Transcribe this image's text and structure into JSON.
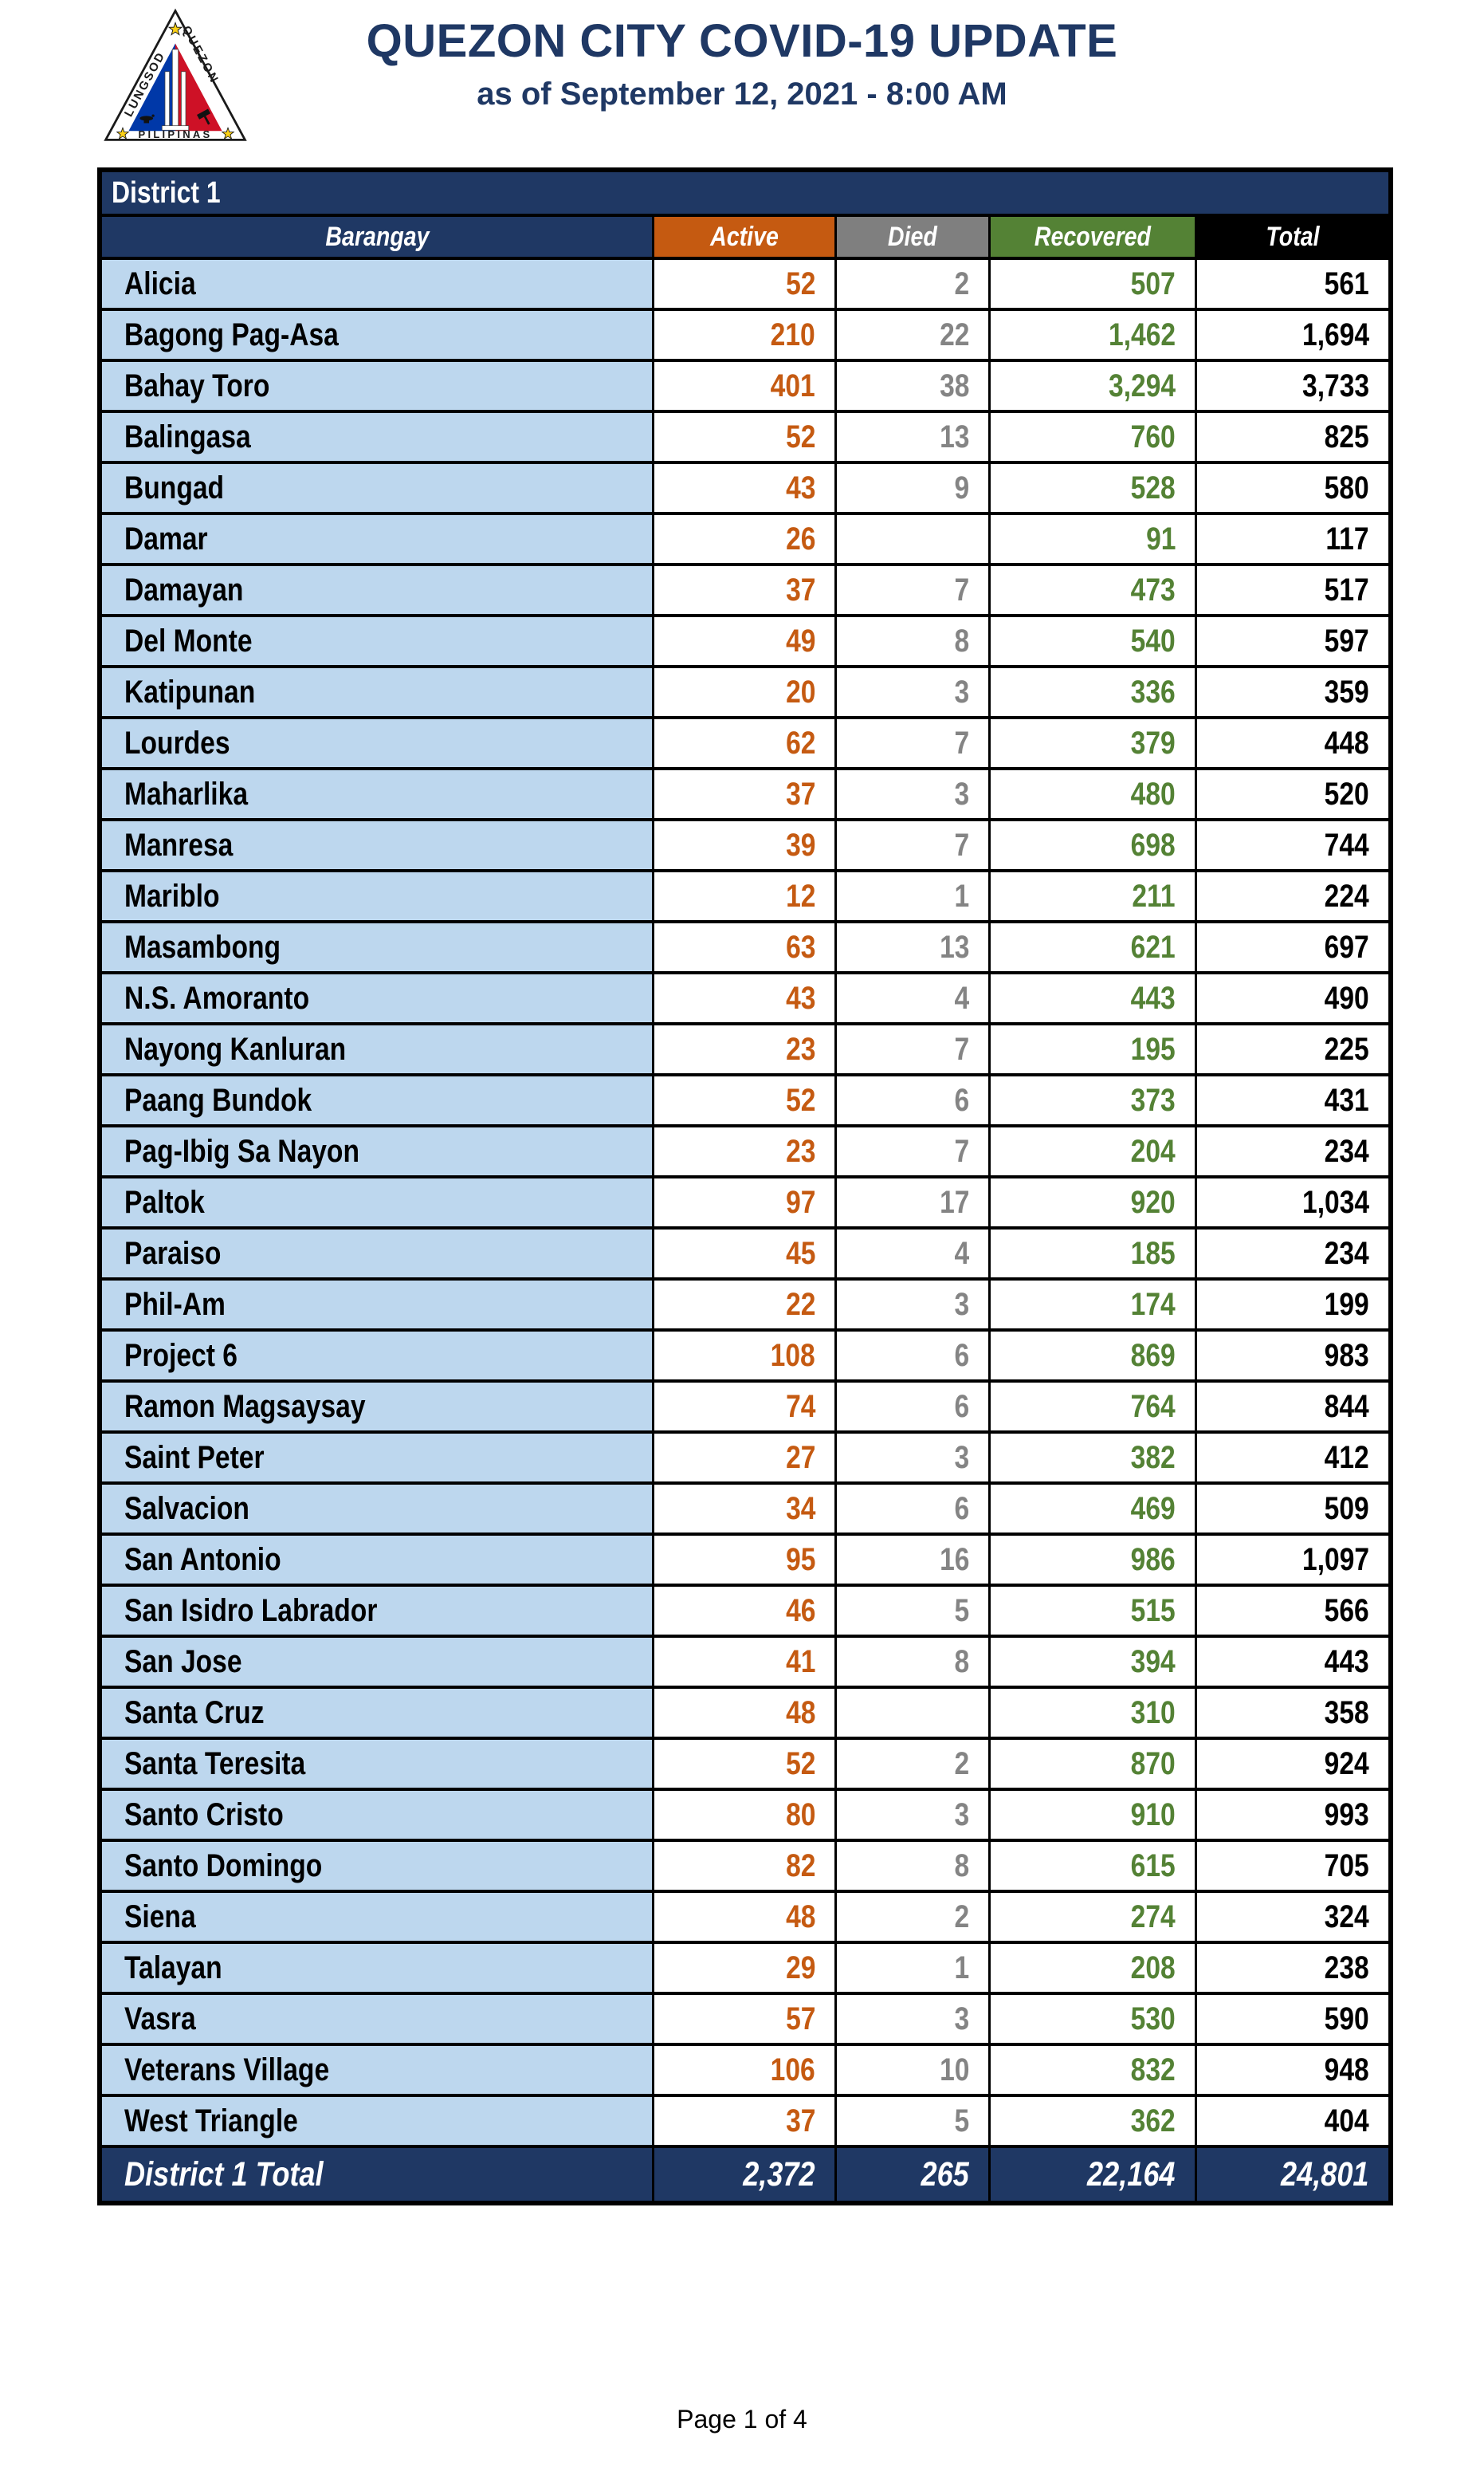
{
  "header": {
    "title": "QUEZON CITY COVID-19 UPDATE",
    "subtitle": "as of September 12, 2021 - 8:00 AM",
    "logo": {
      "left_text": "LUNGSOD",
      "right_text": "QUEZON",
      "bottom_text": "PILIPINAS"
    }
  },
  "table": {
    "district_label": "District 1",
    "columns": [
      "Barangay",
      "Active",
      "Died",
      "Recovered",
      "Total"
    ],
    "rows": [
      {
        "barangay": "Alicia",
        "active": "52",
        "died": "2",
        "recovered": "507",
        "total": "561"
      },
      {
        "barangay": "Bagong Pag-Asa",
        "active": "210",
        "died": "22",
        "recovered": "1,462",
        "total": "1,694"
      },
      {
        "barangay": "Bahay Toro",
        "active": "401",
        "died": "38",
        "recovered": "3,294",
        "total": "3,733"
      },
      {
        "barangay": "Balingasa",
        "active": "52",
        "died": "13",
        "recovered": "760",
        "total": "825"
      },
      {
        "barangay": "Bungad",
        "active": "43",
        "died": "9",
        "recovered": "528",
        "total": "580"
      },
      {
        "barangay": "Damar",
        "active": "26",
        "died": "",
        "recovered": "91",
        "total": "117"
      },
      {
        "barangay": "Damayan",
        "active": "37",
        "died": "7",
        "recovered": "473",
        "total": "517"
      },
      {
        "barangay": "Del Monte",
        "active": "49",
        "died": "8",
        "recovered": "540",
        "total": "597"
      },
      {
        "barangay": "Katipunan",
        "active": "20",
        "died": "3",
        "recovered": "336",
        "total": "359"
      },
      {
        "barangay": "Lourdes",
        "active": "62",
        "died": "7",
        "recovered": "379",
        "total": "448"
      },
      {
        "barangay": "Maharlika",
        "active": "37",
        "died": "3",
        "recovered": "480",
        "total": "520"
      },
      {
        "barangay": "Manresa",
        "active": "39",
        "died": "7",
        "recovered": "698",
        "total": "744"
      },
      {
        "barangay": "Mariblo",
        "active": "12",
        "died": "1",
        "recovered": "211",
        "total": "224"
      },
      {
        "barangay": "Masambong",
        "active": "63",
        "died": "13",
        "recovered": "621",
        "total": "697"
      },
      {
        "barangay": "N.S. Amoranto",
        "active": "43",
        "died": "4",
        "recovered": "443",
        "total": "490"
      },
      {
        "barangay": "Nayong Kanluran",
        "active": "23",
        "died": "7",
        "recovered": "195",
        "total": "225"
      },
      {
        "barangay": "Paang Bundok",
        "active": "52",
        "died": "6",
        "recovered": "373",
        "total": "431"
      },
      {
        "barangay": "Pag-Ibig Sa Nayon",
        "active": "23",
        "died": "7",
        "recovered": "204",
        "total": "234"
      },
      {
        "barangay": "Paltok",
        "active": "97",
        "died": "17",
        "recovered": "920",
        "total": "1,034"
      },
      {
        "barangay": "Paraiso",
        "active": "45",
        "died": "4",
        "recovered": "185",
        "total": "234"
      },
      {
        "barangay": "Phil-Am",
        "active": "22",
        "died": "3",
        "recovered": "174",
        "total": "199"
      },
      {
        "barangay": "Project 6",
        "active": "108",
        "died": "6",
        "recovered": "869",
        "total": "983"
      },
      {
        "barangay": "Ramon Magsaysay",
        "active": "74",
        "died": "6",
        "recovered": "764",
        "total": "844"
      },
      {
        "barangay": "Saint Peter",
        "active": "27",
        "died": "3",
        "recovered": "382",
        "total": "412"
      },
      {
        "barangay": "Salvacion",
        "active": "34",
        "died": "6",
        "recovered": "469",
        "total": "509"
      },
      {
        "barangay": "San Antonio",
        "active": "95",
        "died": "16",
        "recovered": "986",
        "total": "1,097"
      },
      {
        "barangay": "San Isidro Labrador",
        "active": "46",
        "died": "5",
        "recovered": "515",
        "total": "566"
      },
      {
        "barangay": "San Jose",
        "active": "41",
        "died": "8",
        "recovered": "394",
        "total": "443"
      },
      {
        "barangay": "Santa Cruz",
        "active": "48",
        "died": "",
        "recovered": "310",
        "total": "358"
      },
      {
        "barangay": "Santa Teresita",
        "active": "52",
        "died": "2",
        "recovered": "870",
        "total": "924"
      },
      {
        "barangay": "Santo Cristo",
        "active": "80",
        "died": "3",
        "recovered": "910",
        "total": "993"
      },
      {
        "barangay": "Santo Domingo",
        "active": "82",
        "died": "8",
        "recovered": "615",
        "total": "705"
      },
      {
        "barangay": "Siena",
        "active": "48",
        "died": "2",
        "recovered": "274",
        "total": "324"
      },
      {
        "barangay": "Talayan",
        "active": "29",
        "died": "1",
        "recovered": "208",
        "total": "238"
      },
      {
        "barangay": "Vasra",
        "active": "57",
        "died": "3",
        "recovered": "530",
        "total": "590"
      },
      {
        "barangay": "Veterans Village",
        "active": "106",
        "died": "10",
        "recovered": "832",
        "total": "948"
      },
      {
        "barangay": "West Triangle",
        "active": "37",
        "died": "5",
        "recovered": "362",
        "total": "404"
      }
    ],
    "total_row": {
      "label": "District 1 Total",
      "active": "2,372",
      "died": "265",
      "recovered": "22,164",
      "total": "24,801"
    }
  },
  "footer": {
    "page_label": "Page 1 of 4"
  },
  "colors": {
    "navy": "#1F3864",
    "light_blue": "#BDD7EE",
    "active_orange": "#C55A11",
    "died_gray": "#7F7F7F",
    "recovered_green": "#548235",
    "total_black": "#000000",
    "seal_blue": "#0038A8",
    "seal_red": "#CE1126",
    "star_gold": "#FCD116"
  }
}
